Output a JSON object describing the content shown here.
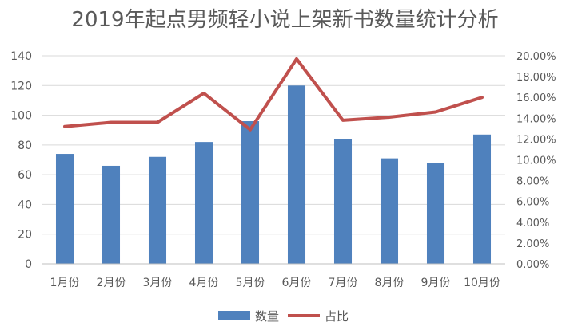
{
  "chart_data": {
    "type": "bar",
    "title": "2019年起点男频轻小说上架新书数量统计分析",
    "categories": [
      "1月份",
      "2月份",
      "3月份",
      "4月份",
      "5月份",
      "6月份",
      "7月份",
      "8月份",
      "9月份",
      "10月份"
    ],
    "series": [
      {
        "name": "数量",
        "type": "bar",
        "axis": "left",
        "color": "#4F81BD",
        "values": [
          74,
          66,
          72,
          82,
          96,
          120,
          84,
          71,
          68,
          87
        ]
      },
      {
        "name": "占比",
        "type": "line",
        "axis": "right",
        "color": "#C0504D",
        "values": [
          0.132,
          0.136,
          0.136,
          0.164,
          0.129,
          0.197,
          0.138,
          0.141,
          0.146,
          0.16
        ]
      }
    ],
    "ylim": [
      0,
      140
    ],
    "y_ticks": [
      "0",
      "20",
      "40",
      "60",
      "80",
      "100",
      "120",
      "140"
    ],
    "y2lim": [
      0,
      0.2
    ],
    "y2_ticks": [
      "0.00%",
      "2.00%",
      "4.00%",
      "6.00%",
      "8.00%",
      "10.00%",
      "12.00%",
      "14.00%",
      "16.00%",
      "18.00%",
      "20.00%"
    ],
    "grid": true,
    "legend": "bottom"
  }
}
